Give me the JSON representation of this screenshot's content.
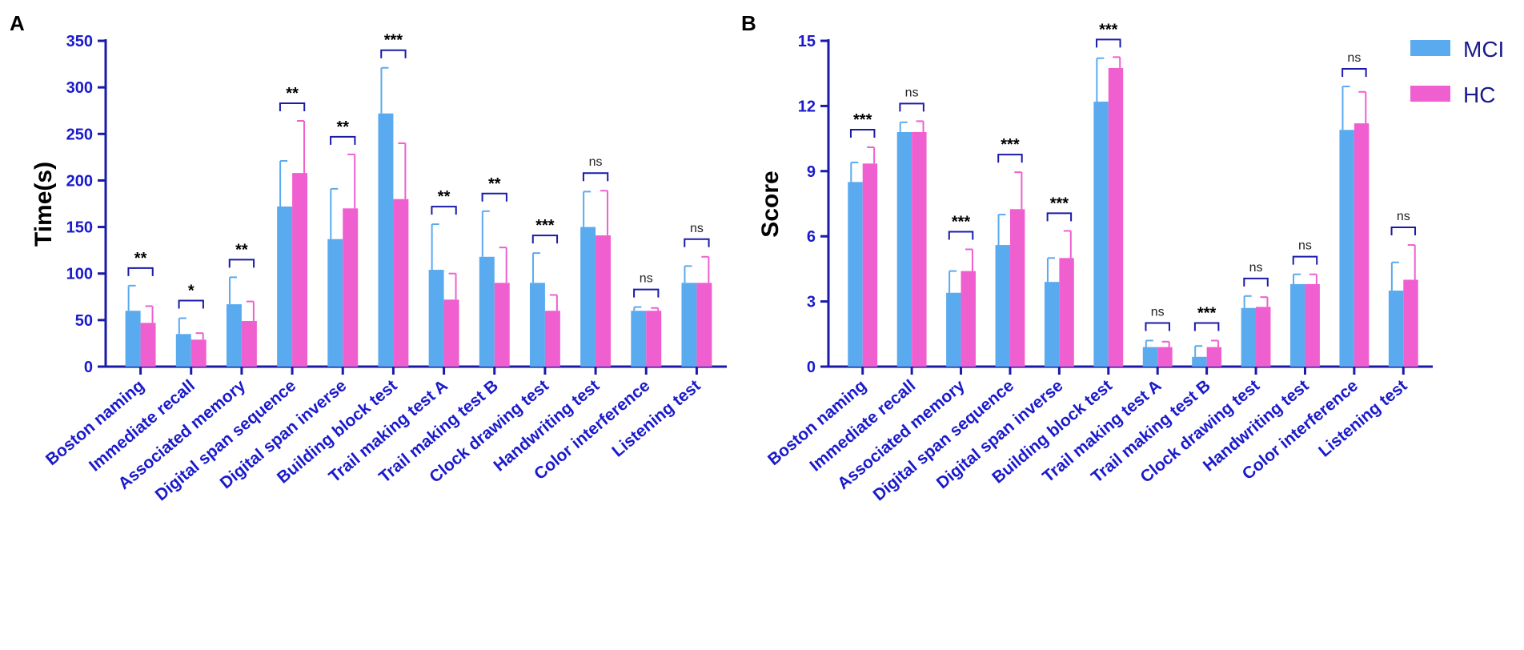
{
  "colors": {
    "axis": "#1a1aaa",
    "tick_text": "#1a1acc",
    "mci": "#5aaaf0",
    "hc": "#ef5fd0",
    "bracket": "#1a1aaa"
  },
  "legend": {
    "items": [
      "MCI",
      "HC"
    ]
  },
  "chart_data": [
    {
      "panel": "A",
      "type": "bar",
      "ylabel": "Time(s)",
      "ylim": [
        0,
        350
      ],
      "yticks": [
        0,
        50,
        100,
        150,
        200,
        250,
        300,
        350
      ],
      "categories": [
        "Boston naming",
        "Immediate recall",
        "Associated  memory",
        "Digital span sequence",
        "Digital span inverse",
        "Building block test",
        "Trail making test A",
        "Trail making test B",
        "Clock drawing test",
        "Handwriting test",
        "Color interference",
        "Listening test"
      ],
      "series": [
        {
          "name": "MCI",
          "values": [
            60,
            35,
            67,
            172,
            137,
            272,
            104,
            118,
            90,
            150,
            60,
            90
          ],
          "errors": [
            27,
            17,
            29,
            49,
            54,
            49,
            49,
            49,
            32,
            38,
            4,
            18
          ]
        },
        {
          "name": "HC",
          "values": [
            47,
            29,
            49,
            208,
            170,
            180,
            72,
            90,
            60,
            141,
            60,
            90
          ],
          "errors": [
            18,
            7,
            21,
            56,
            58,
            60,
            28,
            38,
            17,
            48,
            3,
            28
          ]
        }
      ],
      "significance": [
        "**",
        "*",
        "**",
        "**",
        "**",
        "***",
        "**",
        "**",
        "***",
        "ns",
        "ns",
        "ns"
      ]
    },
    {
      "panel": "B",
      "type": "bar",
      "ylabel": "Score",
      "ylim": [
        0,
        15
      ],
      "yticks": [
        0,
        3,
        6,
        9,
        12,
        15
      ],
      "categories": [
        "Boston naming",
        "Immediate recall",
        "Associated memory",
        "Digital span sequence",
        "Digital span inverse",
        "Building block test",
        "Trail making test A",
        "Trail making test B",
        "Clock drawing test",
        "Handwriting test",
        "Color interference",
        "Listening test"
      ],
      "series": [
        {
          "name": "MCI",
          "values": [
            8.5,
            10.8,
            3.4,
            5.6,
            3.9,
            12.2,
            0.9,
            0.45,
            2.7,
            3.8,
            10.9,
            3.5
          ],
          "errors": [
            0.9,
            0.45,
            1.0,
            1.4,
            1.1,
            2.0,
            0.3,
            0.5,
            0.55,
            0.45,
            2.0,
            1.3
          ]
        },
        {
          "name": "HC",
          "values": [
            9.35,
            10.8,
            4.4,
            7.25,
            5.0,
            13.75,
            0.9,
            0.9,
            2.75,
            3.8,
            11.2,
            4.0
          ],
          "errors": [
            0.75,
            0.5,
            1.0,
            1.7,
            1.25,
            0.5,
            0.25,
            0.3,
            0.45,
            0.45,
            1.45,
            1.6
          ]
        }
      ],
      "significance": [
        "***",
        "ns",
        "***",
        "***",
        "***",
        "***",
        "ns",
        "***",
        "ns",
        "ns",
        "ns",
        "ns"
      ]
    }
  ]
}
